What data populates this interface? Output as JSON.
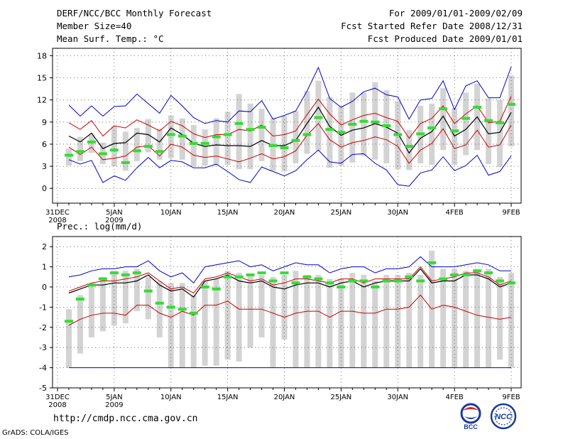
{
  "header": {
    "title": "DERF/NCC/BCC Monthly Forecast",
    "member": "Member Size=40",
    "variable": "Mean Surf. Temp.: °C",
    "period": "For 2009/01/01-2009/02/09",
    "started": "Fcst Started Refer Date 2008/12/31",
    "produced": "Fcst Produced Date 2009/01/01"
  },
  "footer": {
    "url": "http://cmdp.ncc.cma.gov.cn",
    "grads": "GrADS: COLA/IGES",
    "logo1": "BCC",
    "logo2": "NCC"
  },
  "colors": {
    "max": "#0000cc",
    "spread": "#cc0000",
    "mean": "#000000",
    "box": "#d3d3d3",
    "median": "#33dd33"
  },
  "chart_data": [
    {
      "type": "box_plume",
      "title": "Mean Surf. Temp.: °C",
      "ylabel": "°C",
      "ylim": [
        -2,
        19
      ],
      "yticks": [
        0,
        3,
        6,
        9,
        12,
        15,
        18
      ],
      "xlim": [
        0,
        40
      ],
      "xticks": [
        {
          "x": 0,
          "label": "31DEC",
          "sub": "2008"
        },
        {
          "x": 5,
          "label": "5JAN",
          "sub": "2009"
        },
        {
          "x": 10,
          "label": "10JAN",
          "sub": ""
        },
        {
          "x": 15,
          "label": "15JAN",
          "sub": ""
        },
        {
          "x": 20,
          "label": "20JAN",
          "sub": ""
        },
        {
          "x": 25,
          "label": "25JAN",
          "sub": ""
        },
        {
          "x": 30,
          "label": "30JAN",
          "sub": ""
        },
        {
          "x": 35,
          "label": "4FEB",
          "sub": ""
        },
        {
          "x": 40,
          "label": "9FEB",
          "sub": ""
        }
      ],
      "x": [
        1,
        2,
        3,
        4,
        5,
        6,
        7,
        8,
        9,
        10,
        11,
        12,
        13,
        14,
        15,
        16,
        17,
        18,
        19,
        20,
        21,
        22,
        23,
        24,
        25,
        26,
        27,
        28,
        29,
        30,
        31,
        32,
        33,
        34,
        35,
        36,
        37,
        38,
        39,
        40
      ],
      "series": [
        {
          "name": "max",
          "color": "#0000cc",
          "values": [
            11.3,
            9.8,
            11.2,
            9.8,
            11.1,
            11.2,
            12.8,
            11.5,
            10.2,
            12.6,
            11.2,
            9.6,
            8.8,
            9.2,
            9.0,
            10.5,
            10.4,
            11.9,
            9.4,
            9.9,
            10.5,
            13.2,
            16.4,
            12.2,
            11.0,
            11.8,
            13.1,
            13.6,
            12.7,
            12.4,
            9.4,
            12.0,
            12.2,
            14.6,
            10.7,
            13.9,
            14.6,
            12.3,
            12.3,
            16.5
          ]
        },
        {
          "name": "upper",
          "color": "#cc0000",
          "values": [
            8.9,
            8.0,
            9.2,
            7.1,
            8.5,
            8.2,
            9.3,
            8.6,
            7.8,
            9.1,
            8.5,
            7.4,
            6.9,
            7.3,
            7.3,
            8.0,
            7.8,
            8.6,
            7.1,
            7.3,
            7.8,
            10.0,
            12.1,
            10.1,
            8.6,
            9.3,
            9.9,
            10.2,
            9.6,
            9.1,
            6.8,
            8.8,
            9.5,
            11.2,
            8.8,
            10.1,
            11.2,
            8.9,
            9.1,
            12.5
          ]
        },
        {
          "name": "mean",
          "color": "#000000",
          "values": [
            7.1,
            6.3,
            7.5,
            5.4,
            6.1,
            6.2,
            7.5,
            7.3,
            6.3,
            8.2,
            7.3,
            6.1,
            5.7,
            5.9,
            5.8,
            5.8,
            5.7,
            6.5,
            5.8,
            5.8,
            6.5,
            8.8,
            11.0,
            8.4,
            7.2,
            7.9,
            8.2,
            8.8,
            8.3,
            7.5,
            4.8,
            6.8,
            7.7,
            9.8,
            7.1,
            8.0,
            9.7,
            7.4,
            7.6,
            10.3
          ]
        },
        {
          "name": "lower",
          "color": "#cc0000",
          "values": [
            5.6,
            4.6,
            5.6,
            3.9,
            4.1,
            4.4,
            5.6,
            5.8,
            4.4,
            6.0,
            5.6,
            4.5,
            4.2,
            4.4,
            4.0,
            3.6,
            4.1,
            4.7,
            4.0,
            4.3,
            5.1,
            7.2,
            8.8,
            6.6,
            5.6,
            6.2,
            6.5,
            7.0,
            6.6,
            5.7,
            3.4,
            5.2,
            6.1,
            8.1,
            5.4,
            5.9,
            7.9,
            5.6,
            5.9,
            8.6
          ]
        },
        {
          "name": "min",
          "color": "#0000cc",
          "values": [
            3.9,
            3.3,
            3.8,
            0.8,
            1.7,
            1.1,
            2.8,
            4.2,
            2.8,
            3.8,
            3.6,
            2.8,
            2.8,
            3.3,
            2.3,
            1.2,
            0.8,
            2.9,
            2.3,
            1.7,
            2.4,
            3.9,
            5.2,
            3.6,
            3.4,
            4.6,
            4.7,
            3.4,
            2.5,
            0.5,
            0.3,
            2.1,
            2.5,
            4.3,
            2.4,
            3.1,
            4.5,
            1.8,
            2.3,
            4.4
          ]
        }
      ],
      "boxes": [
        {
          "lo": 3.1,
          "hi": 5.4,
          "med": 4.5
        },
        {
          "lo": 3.7,
          "hi": 7.0,
          "med": 5.0
        },
        {
          "lo": 4.8,
          "hi": 7.3,
          "med": 6.3
        },
        {
          "lo": 3.3,
          "hi": 6.2,
          "med": 4.7
        },
        {
          "lo": 3.0,
          "hi": 8.4,
          "med": 5.2
        },
        {
          "lo": 2.4,
          "hi": 7.7,
          "med": 3.5
        },
        {
          "lo": 3.7,
          "hi": 8.2,
          "med": 5.1
        },
        {
          "lo": 4.9,
          "hi": 9.4,
          "med": 5.7
        },
        {
          "lo": 3.9,
          "hi": 8.1,
          "med": 5.0
        },
        {
          "lo": 4.1,
          "hi": 9.9,
          "med": 7.3
        },
        {
          "lo": 3.9,
          "hi": 9.5,
          "med": 7.1
        },
        {
          "lo": 3.0,
          "hi": 8.6,
          "med": 6.1
        },
        {
          "lo": 3.1,
          "hi": 8.0,
          "med": 6.1
        },
        {
          "lo": 3.1,
          "hi": 9.5,
          "med": 7.0
        },
        {
          "lo": 3.2,
          "hi": 10.4,
          "med": 7.3
        },
        {
          "lo": 2.6,
          "hi": 12.8,
          "med": 8.8
        },
        {
          "lo": 2.6,
          "hi": 11.5,
          "med": 8.0
        },
        {
          "lo": 3.7,
          "hi": 10.8,
          "med": 8.3
        },
        {
          "lo": 2.4,
          "hi": 9.6,
          "med": 5.8
        },
        {
          "lo": 2.3,
          "hi": 9.8,
          "med": 5.5
        },
        {
          "lo": 3.4,
          "hi": 10.5,
          "med": 6.5
        },
        {
          "lo": 4.7,
          "hi": 13.2,
          "med": 7.3
        },
        {
          "lo": 5.1,
          "hi": 14.6,
          "med": 9.6
        },
        {
          "lo": 2.8,
          "hi": 12.4,
          "med": 8.0
        },
        {
          "lo": 3.1,
          "hi": 11.1,
          "med": 7.6
        },
        {
          "lo": 3.5,
          "hi": 13.0,
          "med": 8.7
        },
        {
          "lo": 4.4,
          "hi": 13.0,
          "med": 9.1
        },
        {
          "lo": 3.9,
          "hi": 14.4,
          "med": 9.0
        },
        {
          "lo": 3.4,
          "hi": 13.3,
          "med": 8.5
        },
        {
          "lo": 2.6,
          "hi": 11.8,
          "med": 7.3
        },
        {
          "lo": 2.5,
          "hi": 7.9,
          "med": 5.7
        },
        {
          "lo": 3.4,
          "hi": 11.2,
          "med": 7.4
        },
        {
          "lo": 3.2,
          "hi": 11.5,
          "med": 8.2
        },
        {
          "lo": 5.2,
          "hi": 13.6,
          "med": 10.8
        },
        {
          "lo": 3.2,
          "hi": 10.9,
          "med": 7.8
        },
        {
          "lo": 4.5,
          "hi": 13.0,
          "med": 9.5
        },
        {
          "lo": 5.2,
          "hi": 14.2,
          "med": 11.0
        },
        {
          "lo": 3.3,
          "hi": 12.2,
          "med": 9.2
        },
        {
          "lo": 2.9,
          "hi": 12.0,
          "med": 8.9
        },
        {
          "lo": 5.7,
          "hi": 15.3,
          "med": 11.4
        }
      ]
    },
    {
      "type": "box_plume",
      "title": "Prec.: log(mm/d)",
      "ylabel": "log(mm/d)",
      "ylim": [
        -5,
        2.5
      ],
      "yticks": [
        -5,
        -4,
        -3,
        -2,
        -1,
        0,
        1,
        2
      ],
      "xlim": [
        0,
        40
      ],
      "xticks": [
        {
          "x": 0,
          "label": "31DEC",
          "sub": "2008"
        },
        {
          "x": 5,
          "label": "5JAN",
          "sub": "2009"
        },
        {
          "x": 10,
          "label": "10JAN",
          "sub": ""
        },
        {
          "x": 15,
          "label": "15JAN",
          "sub": ""
        },
        {
          "x": 20,
          "label": "20JAN",
          "sub": ""
        },
        {
          "x": 25,
          "label": "25JAN",
          "sub": ""
        },
        {
          "x": 30,
          "label": "30JAN",
          "sub": ""
        },
        {
          "x": 35,
          "label": "4FEB",
          "sub": ""
        },
        {
          "x": 40,
          "label": "9FEB",
          "sub": ""
        }
      ],
      "x": [
        1,
        2,
        3,
        4,
        5,
        6,
        7,
        8,
        9,
        10,
        11,
        12,
        13,
        14,
        15,
        16,
        17,
        18,
        19,
        20,
        21,
        22,
        23,
        24,
        25,
        26,
        27,
        28,
        29,
        30,
        31,
        32,
        33,
        34,
        35,
        36,
        37,
        38,
        39,
        40
      ],
      "series": [
        {
          "name": "max",
          "color": "#0000cc",
          "values": [
            0.5,
            0.6,
            0.8,
            0.9,
            0.9,
            1.0,
            1.0,
            1.3,
            0.8,
            0.5,
            0.7,
            0.2,
            1.0,
            1.1,
            1.2,
            1.3,
            1.0,
            1.1,
            0.8,
            1.0,
            1.2,
            1.1,
            1.1,
            0.7,
            0.9,
            1.0,
            1.0,
            0.7,
            0.9,
            0.9,
            1.0,
            1.5,
            1.0,
            1.0,
            1.0,
            1.1,
            1.2,
            1.1,
            0.8,
            0.8
          ]
        },
        {
          "name": "upper",
          "color": "#cc0000",
          "values": [
            -0.2,
            0.0,
            0.2,
            0.3,
            0.3,
            0.4,
            0.5,
            0.7,
            0.3,
            -0.1,
            0.0,
            -0.3,
            0.4,
            0.5,
            0.7,
            0.5,
            0.3,
            0.4,
            0.1,
            0.2,
            0.4,
            0.4,
            0.3,
            0.2,
            0.4,
            0.4,
            0.2,
            0.4,
            0.4,
            0.4,
            0.4,
            1.0,
            0.3,
            0.4,
            0.5,
            0.7,
            0.7,
            0.5,
            0.1,
            0.3
          ]
        },
        {
          "name": "mean",
          "color": "#000000",
          "values": [
            -0.3,
            -0.1,
            0.1,
            0.1,
            0.2,
            0.2,
            0.3,
            0.6,
            0.1,
            -0.2,
            -0.1,
            -0.5,
            0.3,
            0.4,
            0.6,
            0.3,
            0.2,
            0.3,
            0.0,
            -0.1,
            0.1,
            0.2,
            0.2,
            0.0,
            0.2,
            0.3,
            0.0,
            0.2,
            0.3,
            0.3,
            0.3,
            0.9,
            0.2,
            0.3,
            0.3,
            0.6,
            0.6,
            0.4,
            0.0,
            0.2
          ]
        },
        {
          "name": "lower",
          "color": "#cc0000",
          "values": [
            -1.9,
            -1.6,
            -1.4,
            -1.3,
            -1.3,
            -1.4,
            -0.9,
            -0.9,
            -1.3,
            -1.5,
            -1.2,
            -1.4,
            -0.9,
            -0.9,
            -0.7,
            -1.1,
            -1.1,
            -1.1,
            -1.3,
            -1.5,
            -1.3,
            -1.2,
            -1.2,
            -1.5,
            -1.2,
            -1.2,
            -1.3,
            -1.3,
            -1.1,
            -1.1,
            -1.0,
            -0.4,
            -1.1,
            -0.9,
            -1.0,
            -1.2,
            -1.4,
            -1.5,
            -1.6,
            -1.5
          ]
        },
        {
          "name": "min",
          "color": "#0000cc",
          "values": [
            -4,
            -4,
            -4,
            -4,
            -4,
            -4,
            -4,
            -4,
            -4,
            -4,
            -4,
            -4,
            -4,
            -4,
            -4,
            -4,
            -4,
            -4,
            -4,
            -4,
            -4,
            -4,
            -4,
            -4,
            -4,
            -4,
            -4,
            -4,
            -4,
            -4,
            -4,
            -4,
            -4,
            -4,
            -4,
            -4,
            -4,
            -4,
            -4,
            -4
          ]
        }
      ],
      "boxes": [
        {
          "lo": -4.0,
          "hi": -1.1,
          "med": -1.7
        },
        {
          "lo": -3.3,
          "hi": -0.4,
          "med": -0.6
        },
        {
          "lo": -2.5,
          "hi": 0.2,
          "med": 0.1
        },
        {
          "lo": -2.2,
          "hi": 0.5,
          "med": 0.4
        },
        {
          "lo": -1.9,
          "hi": 0.8,
          "med": 0.7
        },
        {
          "lo": -1.8,
          "hi": 0.8,
          "med": 0.6
        },
        {
          "lo": -1.2,
          "hi": 0.9,
          "med": 0.7
        },
        {
          "lo": -1.6,
          "hi": 0.5,
          "med": -0.2
        },
        {
          "lo": -2.5,
          "hi": 0.3,
          "med": -0.8
        },
        {
          "lo": -4.0,
          "hi": 0.2,
          "med": -1.0
        },
        {
          "lo": -4.0,
          "hi": 0.2,
          "med": -1.1
        },
        {
          "lo": -4.0,
          "hi": -0.4,
          "med": -1.3
        },
        {
          "lo": -3.9,
          "hi": 0.3,
          "med": 0.0
        },
        {
          "lo": -3.9,
          "hi": 0.4,
          "med": -0.1
        },
        {
          "lo": -3.6,
          "hi": 0.8,
          "med": 0.5
        },
        {
          "lo": -3.7,
          "hi": 0.7,
          "med": 0.5
        },
        {
          "lo": -3.0,
          "hi": 0.6,
          "med": 0.6
        },
        {
          "lo": -2.5,
          "hi": 0.6,
          "med": 0.7
        },
        {
          "lo": -4.0,
          "hi": 0.5,
          "med": 0.3
        },
        {
          "lo": -2.6,
          "hi": 0.6,
          "med": 0.7
        },
        {
          "lo": -4.0,
          "hi": 0.8,
          "med": 0.2
        },
        {
          "lo": -4.0,
          "hi": 0.6,
          "med": 0.5
        },
        {
          "lo": -4.0,
          "hi": 0.6,
          "med": 0.4
        },
        {
          "lo": -4.0,
          "hi": 0.4,
          "med": 0.2
        },
        {
          "lo": -4.0,
          "hi": 0.4,
          "med": 0.0
        },
        {
          "lo": -4.0,
          "hi": 0.7,
          "med": 0.3
        },
        {
          "lo": -4.0,
          "hi": 0.6,
          "med": 0.3
        },
        {
          "lo": -4.0,
          "hi": 0.3,
          "med": 0.0
        },
        {
          "lo": -4.0,
          "hi": 0.6,
          "med": 0.3
        },
        {
          "lo": -4.0,
          "hi": 0.6,
          "med": 0.3
        },
        {
          "lo": -4.0,
          "hi": 0.7,
          "med": 0.5
        },
        {
          "lo": -4.0,
          "hi": 0.6,
          "med": 0.3
        },
        {
          "lo": -4.0,
          "hi": 1.8,
          "med": 1.2
        },
        {
          "lo": -4.0,
          "hi": 0.9,
          "med": 0.4
        },
        {
          "lo": -4.0,
          "hi": 0.9,
          "med": 0.6
        },
        {
          "lo": -4.0,
          "hi": 0.8,
          "med": 0.6
        },
        {
          "lo": -4.0,
          "hi": 0.9,
          "med": 0.8
        },
        {
          "lo": -4.0,
          "hi": 0.9,
          "med": 0.7
        },
        {
          "lo": -3.6,
          "hi": 0.5,
          "med": 0.3
        },
        {
          "lo": -4.0,
          "hi": 0.7,
          "med": 0.2
        }
      ]
    }
  ]
}
